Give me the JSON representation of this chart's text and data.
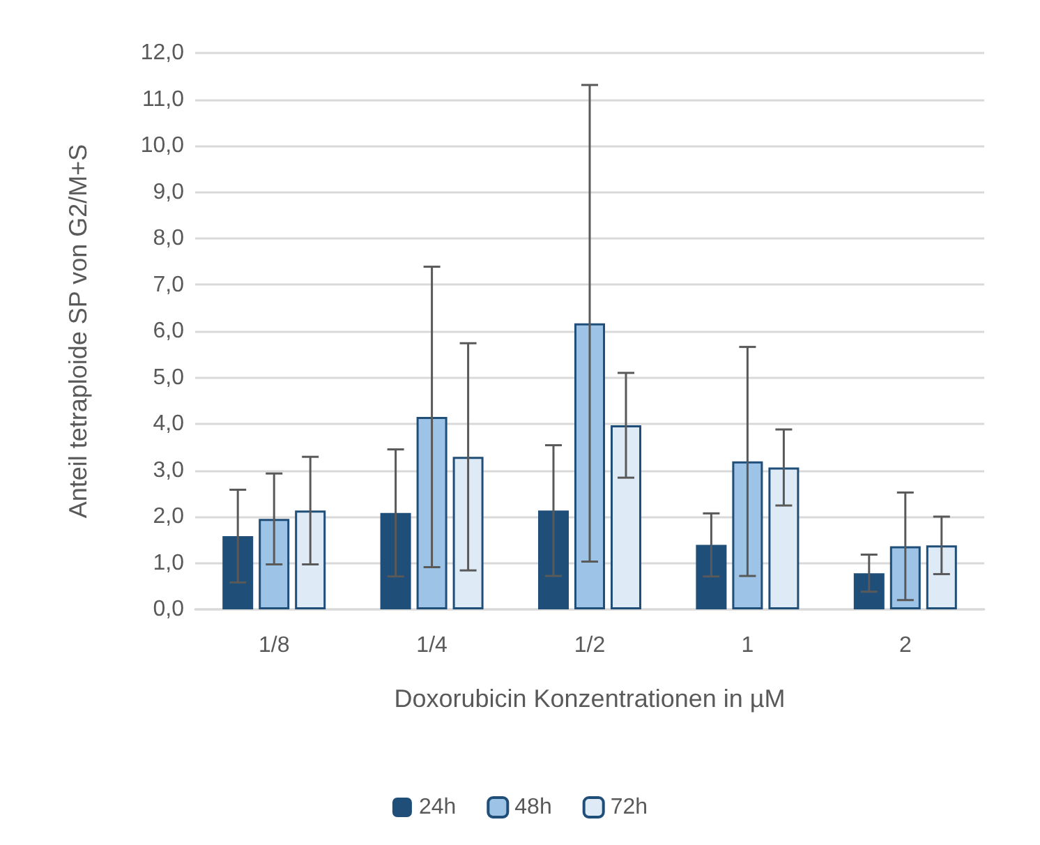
{
  "chart_data": {
    "type": "bar",
    "xlabel": "Doxorubicin Konzentrationen in µM",
    "ylabel": "Anteil tetraploide SP von G2/M+S",
    "categories": [
      "1/8",
      "1/4",
      "1/2",
      "1",
      "2"
    ],
    "series": [
      {
        "name": "24h",
        "color": "#1f4e79",
        "values": [
          1.58,
          2.08,
          2.13,
          1.39,
          0.78
        ],
        "errors": [
          1.0,
          1.37,
          1.41,
          0.68,
          0.4
        ]
      },
      {
        "name": "48h",
        "color": "#9dc3e6",
        "values": [
          1.95,
          4.15,
          6.17,
          3.19,
          1.36
        ],
        "errors": [
          0.98,
          3.24,
          5.14,
          2.47,
          1.16
        ]
      },
      {
        "name": "72h",
        "color": "#deebf7",
        "values": [
          2.13,
          3.29,
          3.97,
          3.06,
          1.38
        ],
        "errors": [
          1.16,
          2.45,
          1.13,
          0.82,
          0.62
        ]
      }
    ],
    "ylim": [
      0,
      12
    ],
    "yticks": [
      {
        "value": 0,
        "label": "0,0"
      },
      {
        "value": 1,
        "label": "1,0"
      },
      {
        "value": 2,
        "label": "2,0"
      },
      {
        "value": 3,
        "label": "3,0"
      },
      {
        "value": 4,
        "label": "4,0"
      },
      {
        "value": 5,
        "label": "5,0"
      },
      {
        "value": 6,
        "label": "6,0"
      },
      {
        "value": 7,
        "label": "7,0"
      },
      {
        "value": 8,
        "label": "8,0"
      },
      {
        "value": 9,
        "label": "9,0"
      },
      {
        "value": 10,
        "label": "10,0"
      },
      {
        "value": 11,
        "label": "11,0"
      },
      {
        "value": 12,
        "label": "12,0"
      }
    ],
    "grid": "y",
    "legend": "bottom"
  }
}
